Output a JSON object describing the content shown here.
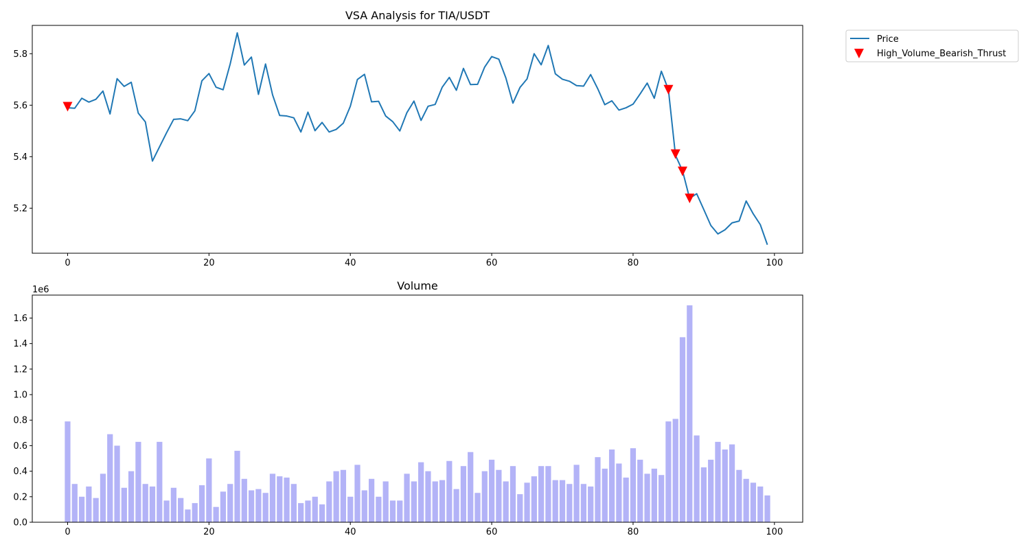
{
  "chart_data": [
    {
      "type": "line",
      "title": "VSA Analysis for TIA/USDT",
      "xlabel": "",
      "ylabel": "",
      "xlim": [
        -5,
        104
      ],
      "ylim": [
        5.025,
        5.91
      ],
      "xticks": [
        0,
        20,
        40,
        60,
        80,
        100
      ],
      "yticks": [
        5.2,
        5.4,
        5.6,
        5.8
      ],
      "grid": false,
      "legend_position": "outside-top-right",
      "series": [
        {
          "name": "Price",
          "color": "#1f77b4",
          "x_start": 0,
          "values": [
            5.59,
            5.588,
            5.627,
            5.612,
            5.623,
            5.655,
            5.566,
            5.703,
            5.673,
            5.689,
            5.569,
            5.535,
            5.383,
            5.438,
            5.493,
            5.545,
            5.547,
            5.54,
            5.578,
            5.695,
            5.723,
            5.67,
            5.66,
            5.76,
            5.881,
            5.756,
            5.787,
            5.642,
            5.76,
            5.64,
            5.56,
            5.558,
            5.551,
            5.496,
            5.573,
            5.501,
            5.533,
            5.496,
            5.506,
            5.53,
            5.596,
            5.7,
            5.72,
            5.613,
            5.615,
            5.558,
            5.536,
            5.5,
            5.571,
            5.616,
            5.541,
            5.596,
            5.603,
            5.67,
            5.708,
            5.658,
            5.743,
            5.68,
            5.681,
            5.748,
            5.789,
            5.779,
            5.706,
            5.608,
            5.669,
            5.702,
            5.8,
            5.757,
            5.832,
            5.722,
            5.701,
            5.693,
            5.676,
            5.674,
            5.719,
            5.664,
            5.602,
            5.617,
            5.581,
            5.59,
            5.604,
            5.644,
            5.686,
            5.627,
            5.732,
            5.66,
            5.405,
            5.345,
            5.238,
            5.256,
            5.195,
            5.133,
            5.1,
            5.116,
            5.143,
            5.15,
            5.228,
            5.178,
            5.136,
            5.058
          ]
        },
        {
          "name": "High_Volume_Bearish_Thrust",
          "color": "#ff0000",
          "marker": "triangle-down",
          "points": [
            {
              "x": 0,
              "y": 5.594
            },
            {
              "x": 85,
              "y": 5.66
            },
            {
              "x": 86,
              "y": 5.41
            },
            {
              "x": 87,
              "y": 5.343
            },
            {
              "x": 88,
              "y": 5.238
            }
          ]
        }
      ]
    },
    {
      "type": "bar",
      "title": "Volume",
      "offset_label": "1e6",
      "xlabel": "",
      "ylabel": "",
      "xlim": [
        -5,
        104
      ],
      "ylim": [
        0,
        1.78
      ],
      "xticks": [
        0,
        20,
        40,
        60,
        80,
        100
      ],
      "yticks": [
        0.0,
        0.2,
        0.4,
        0.6,
        0.8,
        1.0,
        1.2,
        1.4,
        1.6
      ],
      "ytick_labels": [
        "0.0",
        "0.2",
        "0.4",
        "0.6",
        "0.8",
        "1.0",
        "1.2",
        "1.4",
        "1.6"
      ],
      "grid": false,
      "bar_color": "#b3b3f7",
      "x_start": 0,
      "values": [
        0.79,
        0.3,
        0.2,
        0.28,
        0.19,
        0.38,
        0.69,
        0.6,
        0.27,
        0.4,
        0.63,
        0.3,
        0.28,
        0.63,
        0.17,
        0.27,
        0.19,
        0.1,
        0.15,
        0.29,
        0.5,
        0.12,
        0.24,
        0.3,
        0.56,
        0.34,
        0.25,
        0.26,
        0.23,
        0.38,
        0.36,
        0.35,
        0.3,
        0.15,
        0.17,
        0.2,
        0.14,
        0.32,
        0.4,
        0.41,
        0.2,
        0.45,
        0.25,
        0.34,
        0.2,
        0.32,
        0.17,
        0.17,
        0.38,
        0.32,
        0.47,
        0.4,
        0.32,
        0.33,
        0.48,
        0.26,
        0.44,
        0.55,
        0.23,
        0.4,
        0.49,
        0.41,
        0.32,
        0.44,
        0.22,
        0.31,
        0.36,
        0.44,
        0.44,
        0.33,
        0.33,
        0.3,
        0.45,
        0.3,
        0.28,
        0.51,
        0.42,
        0.57,
        0.46,
        0.35,
        0.58,
        0.49,
        0.38,
        0.42,
        0.37,
        0.79,
        0.81,
        1.45,
        1.7,
        0.68,
        0.43,
        0.49,
        0.63,
        0.57,
        0.61,
        0.41,
        0.34,
        0.31,
        0.28,
        0.21
      ]
    }
  ]
}
